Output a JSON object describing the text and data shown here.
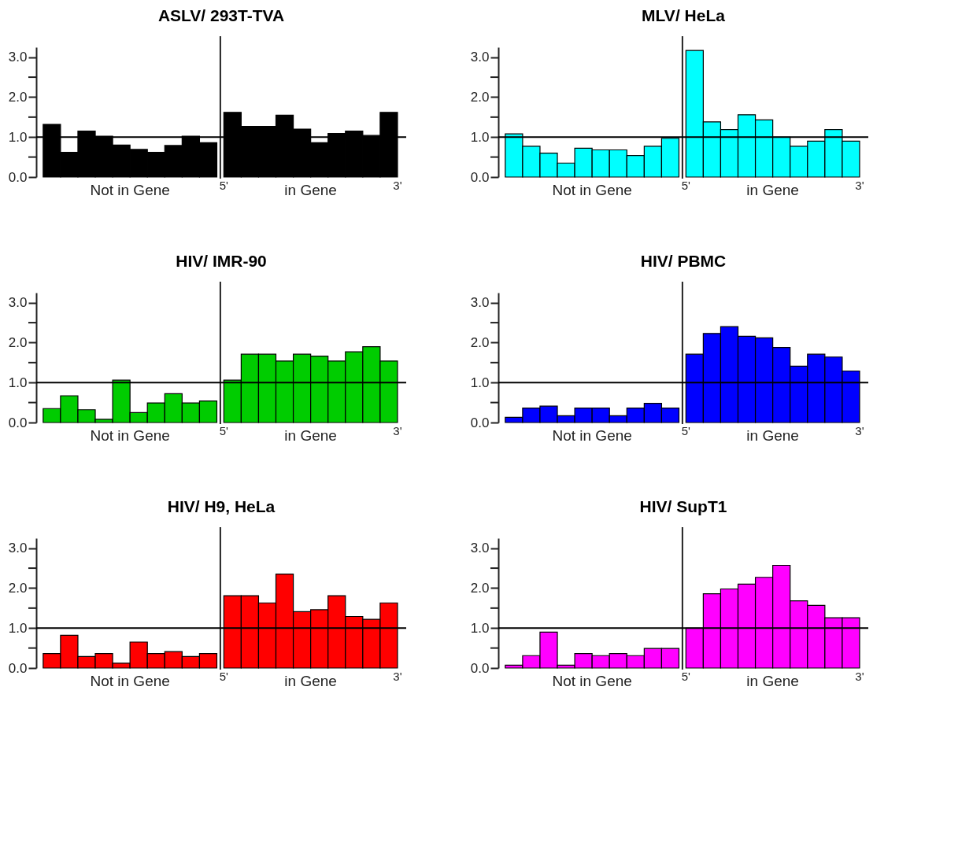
{
  "chart_data": [
    {
      "type": "bar",
      "title": "ASLV/ 293T-TVA",
      "categories": [
        null,
        null,
        null,
        null,
        null,
        null,
        null,
        null,
        null,
        null,
        null,
        null,
        null,
        null,
        null,
        null,
        null,
        null,
        null,
        null
      ],
      "values": [
        1.32,
        0.62,
        1.15,
        1.02,
        0.8,
        0.69,
        0.62,
        0.79,
        1.02,
        0.86,
        1.62,
        1.27,
        1.27,
        1.55,
        1.2,
        0.86,
        1.09,
        1.15,
        1.04,
        1.62
      ],
      "color": "#000000",
      "ylim": [
        0,
        3.25
      ],
      "yticks": [
        {
          "value": 0,
          "label": "0.0"
        },
        {
          "value": 0.5,
          "label": null
        },
        {
          "value": 1,
          "label": "1.0"
        },
        {
          "value": 1.5,
          "label": null
        },
        {
          "value": 2,
          "label": "2.0"
        },
        {
          "value": 2.5,
          "label": null
        },
        {
          "value": 3,
          "label": "3.0"
        }
      ],
      "ref_lines": [
        {
          "axis": "y",
          "value": 1
        }
      ],
      "annotations": [
        "Not in Gene",
        "5'",
        "in Gene",
        "3'"
      ],
      "grid": false
    },
    {
      "type": "bar",
      "title": "MLV/ HeLa",
      "categories": [
        null,
        null,
        null,
        null,
        null,
        null,
        null,
        null,
        null,
        null,
        null,
        null,
        null,
        null,
        null,
        null,
        null,
        null,
        null,
        null
      ],
      "values": [
        1.08,
        0.77,
        0.6,
        0.35,
        0.72,
        0.68,
        0.68,
        0.54,
        0.77,
        0.97,
        3.17,
        1.38,
        1.19,
        1.56,
        1.43,
        1.0,
        0.77,
        0.9,
        1.19,
        0.9
      ],
      "color": "#00ffff",
      "ylim": [
        0,
        3.25
      ],
      "yticks": [
        {
          "value": 0,
          "label": "0.0"
        },
        {
          "value": 0.5,
          "label": null
        },
        {
          "value": 1,
          "label": "1.0"
        },
        {
          "value": 1.5,
          "label": null
        },
        {
          "value": 2,
          "label": "2.0"
        },
        {
          "value": 2.5,
          "label": null
        },
        {
          "value": 3,
          "label": "3.0"
        }
      ],
      "ref_lines": [
        {
          "axis": "y",
          "value": 1
        }
      ],
      "annotations": [
        "Not in Gene",
        "5'",
        "in Gene",
        "3'"
      ],
      "grid": false
    },
    {
      "type": "bar",
      "title": "HIV/ IMR-90",
      "categories": [
        null,
        null,
        null,
        null,
        null,
        null,
        null,
        null,
        null,
        null,
        null,
        null,
        null,
        null,
        null,
        null,
        null,
        null,
        null,
        null
      ],
      "values": [
        0.35,
        0.67,
        0.32,
        0.08,
        1.06,
        0.25,
        0.49,
        0.72,
        0.49,
        0.54,
        1.06,
        1.71,
        1.71,
        1.54,
        1.71,
        1.66,
        1.54,
        1.77,
        1.9,
        1.54
      ],
      "color": "#00cc00",
      "ylim": [
        0,
        3.25
      ],
      "yticks": [
        {
          "value": 0,
          "label": "0.0"
        },
        {
          "value": 0.5,
          "label": null
        },
        {
          "value": 1,
          "label": "1.0"
        },
        {
          "value": 1.5,
          "label": null
        },
        {
          "value": 2,
          "label": "2.0"
        },
        {
          "value": 2.5,
          "label": null
        },
        {
          "value": 3,
          "label": "3.0"
        }
      ],
      "ref_lines": [
        {
          "axis": "y",
          "value": 1
        }
      ],
      "annotations": [
        "Not in Gene",
        "5'",
        "in Gene",
        "3'"
      ],
      "grid": false
    },
    {
      "type": "bar",
      "title": "HIV/ PBMC",
      "categories": [
        null,
        null,
        null,
        null,
        null,
        null,
        null,
        null,
        null,
        null,
        null,
        null,
        null,
        null,
        null,
        null,
        null,
        null,
        null,
        null
      ],
      "values": [
        0.13,
        0.36,
        0.41,
        0.17,
        0.36,
        0.36,
        0.17,
        0.36,
        0.48,
        0.36,
        1.71,
        2.23,
        2.4,
        2.16,
        2.12,
        1.88,
        1.41,
        1.71,
        1.64,
        1.29
      ],
      "color": "#0000ff",
      "ylim": [
        0,
        3.25
      ],
      "yticks": [
        {
          "value": 0,
          "label": "0.0"
        },
        {
          "value": 0.5,
          "label": null
        },
        {
          "value": 1,
          "label": "1.0"
        },
        {
          "value": 1.5,
          "label": null
        },
        {
          "value": 2,
          "label": "2.0"
        },
        {
          "value": 2.5,
          "label": null
        },
        {
          "value": 3,
          "label": "3.0"
        }
      ],
      "ref_lines": [
        {
          "axis": "y",
          "value": 1
        }
      ],
      "annotations": [
        "Not in Gene",
        "5'",
        "in Gene",
        "3'"
      ],
      "grid": false
    },
    {
      "type": "bar",
      "title": "HIV/ H9, HeLa",
      "categories": [
        null,
        null,
        null,
        null,
        null,
        null,
        null,
        null,
        null,
        null,
        null,
        null,
        null,
        null,
        null,
        null,
        null,
        null,
        null,
        null
      ],
      "values": [
        0.36,
        0.82,
        0.29,
        0.36,
        0.12,
        0.65,
        0.36,
        0.41,
        0.29,
        0.36,
        1.81,
        1.81,
        1.63,
        2.35,
        1.41,
        1.46,
        1.81,
        1.29,
        1.22,
        1.63
      ],
      "color": "#ff0000",
      "ylim": [
        0,
        3.25
      ],
      "yticks": [
        {
          "value": 0,
          "label": "0.0"
        },
        {
          "value": 0.5,
          "label": null
        },
        {
          "value": 1,
          "label": "1.0"
        },
        {
          "value": 1.5,
          "label": null
        },
        {
          "value": 2,
          "label": "2.0"
        },
        {
          "value": 2.5,
          "label": null
        },
        {
          "value": 3,
          "label": "3.0"
        }
      ],
      "ref_lines": [
        {
          "axis": "y",
          "value": 1
        }
      ],
      "annotations": [
        "Not in Gene",
        "5'",
        "in Gene",
        "3'"
      ],
      "grid": false
    },
    {
      "type": "bar",
      "title": "HIV/ SupT1",
      "categories": [
        null,
        null,
        null,
        null,
        null,
        null,
        null,
        null,
        null,
        null,
        null,
        null,
        null,
        null,
        null,
        null,
        null,
        null,
        null,
        null
      ],
      "values": [
        0.07,
        0.31,
        0.9,
        0.07,
        0.36,
        0.31,
        0.36,
        0.31,
        0.49,
        0.49,
        1.0,
        1.86,
        1.98,
        2.1,
        2.27,
        2.57,
        1.68,
        1.57,
        1.26,
        1.26
      ],
      "color": "#ff00ff",
      "ylim": [
        0,
        3.25
      ],
      "yticks": [
        {
          "value": 0,
          "label": "0.0"
        },
        {
          "value": 0.5,
          "label": null
        },
        {
          "value": 1,
          "label": "1.0"
        },
        {
          "value": 1.5,
          "label": null
        },
        {
          "value": 2,
          "label": "2.0"
        },
        {
          "value": 2.5,
          "label": null
        },
        {
          "value": 3,
          "label": "3.0"
        }
      ],
      "ref_lines": [
        {
          "axis": "y",
          "value": 1
        }
      ],
      "annotations": [
        "Not in Gene",
        "5'",
        "in Gene",
        "3'"
      ],
      "grid": false
    }
  ]
}
